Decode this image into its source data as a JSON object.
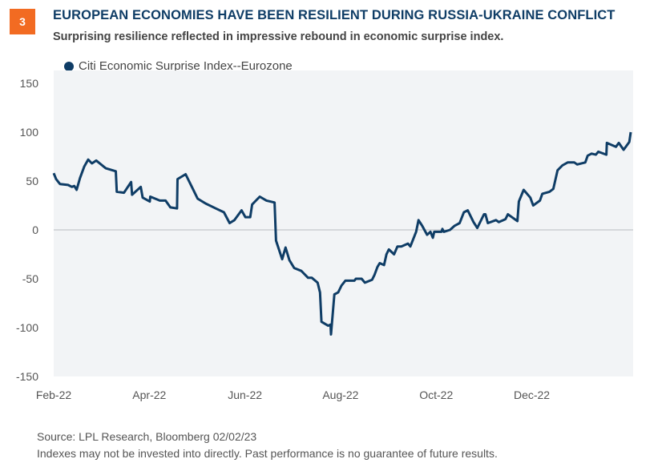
{
  "badge": "3",
  "title": "EUROPEAN ECONOMIES HAVE BEEN RESILIENT DURING RUSSIA-UKRAINE CONFLICT",
  "subtitle": "Surprising resilience reflected in impressive rebound in economic surprise index.",
  "footnotes": [
    "Source: LPL Research, Bloomberg  02/02/23",
    "Indexes may not be invested into directly. Past performance is no guarantee of future results."
  ],
  "colors": {
    "line": "#0f3d66",
    "badge": "#f26b22",
    "plot_bg": "#f2f4f6"
  },
  "chart_data": {
    "type": "line",
    "title": "EUROPEAN ECONOMIES HAVE BEEN RESILIENT DURING RUSSIA-UKRAINE CONFLICT",
    "xlabel": "",
    "ylabel": "",
    "x_unit": "months since Feb 1, 2022",
    "xlim": [
      0,
      12.12
    ],
    "ylim": [
      -150,
      150
    ],
    "yticks": [
      150,
      100,
      50,
      0,
      -50,
      -100,
      -150
    ],
    "xticks": [
      {
        "v": 0,
        "label": "Feb-22"
      },
      {
        "v": 2,
        "label": "Apr-22"
      },
      {
        "v": 4,
        "label": "Jun-22"
      },
      {
        "v": 6,
        "label": "Aug-22"
      },
      {
        "v": 8,
        "label": "Oct-22"
      },
      {
        "v": 10,
        "label": "Dec-22"
      }
    ],
    "legend": "top-left",
    "series": [
      {
        "name": "Citi Economic Surprise Index--Eurozone",
        "x": [
          0,
          0.05,
          0.13,
          0.3,
          0.38,
          0.43,
          0.48,
          0.55,
          0.64,
          0.72,
          0.8,
          0.89,
          1.09,
          1.3,
          1.32,
          1.47,
          1.62,
          1.64,
          1.82,
          1.86,
          2.01,
          2.02,
          2.22,
          2.34,
          2.44,
          2.58,
          2.59,
          2.76,
          2.93,
          3.01,
          3.18,
          3.39,
          3.56,
          3.68,
          3.78,
          3.93,
          4.01,
          4.11,
          4.15,
          4.31,
          4.45,
          4.62,
          4.65,
          4.78,
          4.85,
          4.93,
          5.03,
          5.18,
          5.32,
          5.4,
          5.52,
          5.57,
          5.6,
          5.74,
          5.79,
          5.8,
          5.87,
          5.95,
          6.02,
          6.1,
          6.29,
          6.32,
          6.44,
          6.51,
          6.66,
          6.71,
          6.77,
          6.82,
          6.91,
          6.96,
          7.01,
          7.12,
          7.19,
          7.27,
          7.41,
          7.46,
          7.58,
          7.63,
          7.71,
          7.81,
          7.88,
          7.93,
          7.96,
          8.11,
          8.13,
          8.16,
          8.29,
          8.38,
          8.49,
          8.58,
          8.66,
          8.78,
          8.86,
          9.0,
          9.03,
          9.08,
          9.25,
          9.31,
          9.45,
          9.5,
          9.7,
          9.73,
          9.83,
          9.97,
          10.03,
          10.17,
          10.22,
          10.37,
          10.45,
          10.54,
          10.64,
          10.75,
          10.89,
          10.95,
          11.12,
          11.17,
          11.25,
          11.34,
          11.39,
          11.56,
          11.57,
          11.76,
          11.82,
          11.92,
          12.04,
          12.07
        ],
        "y": [
          58,
          52,
          47,
          46,
          44,
          45,
          41,
          53,
          65,
          72,
          68,
          71,
          63,
          60,
          39,
          38,
          49,
          36,
          44,
          33,
          29,
          34,
          30,
          30,
          23,
          22,
          52,
          57,
          40,
          32,
          27,
          22,
          18,
          7,
          10,
          20,
          13,
          13,
          26,
          34,
          30,
          28,
          -11,
          -30,
          -18,
          -31,
          -39,
          -42,
          -49,
          -49,
          -54,
          -64,
          -94,
          -98,
          -97,
          -107,
          -66,
          -64,
          -57,
          -52,
          -52,
          -50,
          -50,
          -54,
          -51,
          -46,
          -38,
          -34,
          -36,
          -25,
          -20,
          -25,
          -17,
          -17,
          -14,
          -17,
          -2,
          10,
          4,
          -5,
          -2,
          -8,
          -2,
          -2,
          1,
          -2,
          0,
          4,
          7,
          18,
          20,
          8,
          2,
          16,
          16,
          7,
          10,
          8,
          11,
          16,
          9,
          29,
          41,
          33,
          25,
          30,
          37,
          39,
          42,
          61,
          66,
          69,
          69,
          67,
          69,
          76,
          78,
          77,
          80,
          77,
          89,
          85,
          89,
          82,
          90,
          100
        ]
      }
    ]
  }
}
